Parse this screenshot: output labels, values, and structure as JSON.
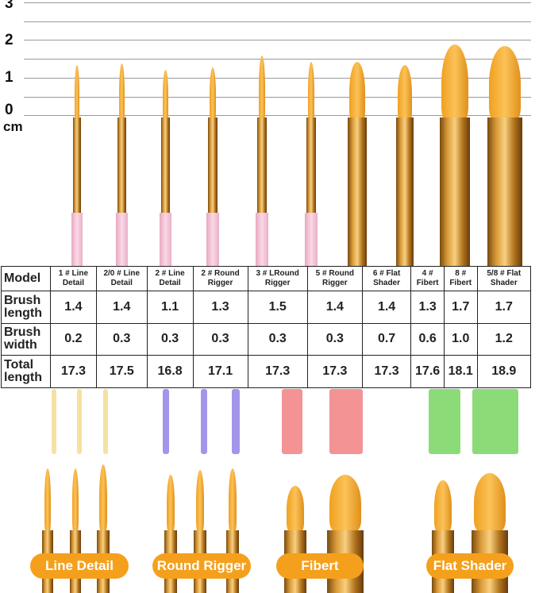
{
  "ruler": {
    "unit": "cm",
    "ticks": [
      "3",
      "2",
      "1",
      "0"
    ]
  },
  "table": {
    "header": "Model",
    "models": [
      "1 # Line Detail",
      "2/0 # Line Detail",
      "2 # Line Detail",
      "2 # Round Rigger",
      "3 # LRound Rigger",
      "5 # Round Rigger",
      "6 # Flat Shader",
      "4 # Fibert",
      "8 # Fibert",
      "5/8 # Flat Shader"
    ],
    "rows": [
      {
        "label": "Brush length",
        "values": [
          "1.4",
          "1.4",
          "1.1",
          "1.3",
          "1.5",
          "1.4",
          "1.4",
          "1.3",
          "1.7",
          "1.7"
        ]
      },
      {
        "label": "Brush width",
        "values": [
          "0.2",
          "0.3",
          "0.3",
          "0.3",
          "0.3",
          "0.3",
          "0.7",
          "0.6",
          "1.0",
          "1.2"
        ]
      },
      {
        "label": "Total length",
        "values": [
          "17.3",
          "17.5",
          "16.8",
          "17.1",
          "17.3",
          "17.3",
          "17.3",
          "17.6",
          "18.1",
          "18.9"
        ]
      }
    ]
  },
  "categories": [
    "Line Detail",
    "Round Rigger",
    "Fibert",
    "Flat Shader"
  ],
  "colors": {
    "accent": "#f5a01c",
    "line_detail_paint": "#f3d98a",
    "round_rigger_paint": "#8d7ae6",
    "fibert_paint": "#f07878",
    "flat_shader_paint": "#6fd257"
  }
}
